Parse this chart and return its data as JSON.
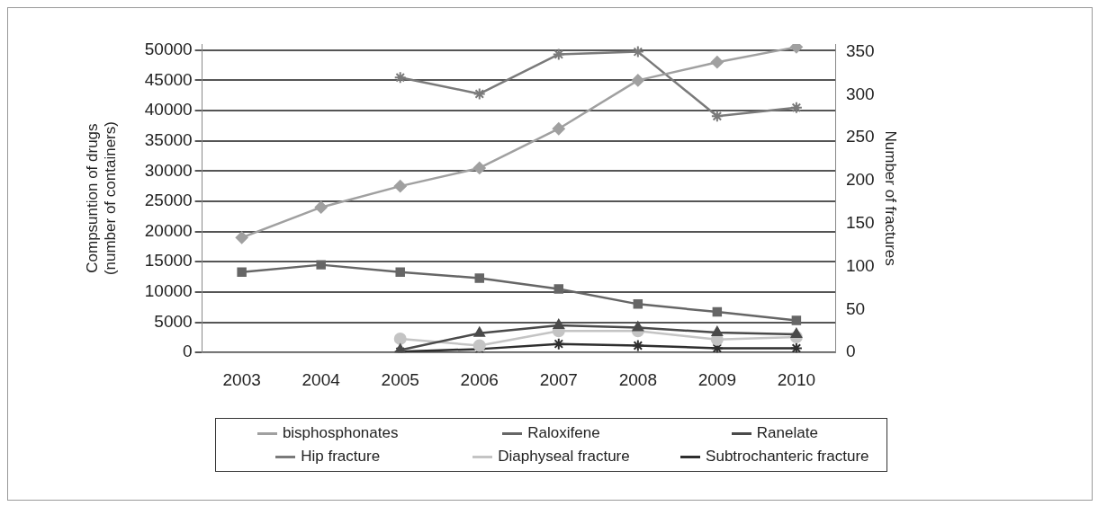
{
  "chart_data": {
    "type": "line",
    "ylabel": "Compsuntion of drugs\n(number of containers)",
    "y2label": "Number of fractures",
    "categories": [
      "2003",
      "2004",
      "2005",
      "2006",
      "2007",
      "2008",
      "2009",
      "2010"
    ],
    "series": [
      {
        "name": "bisphosphonates",
        "color": "#a0a0a0",
        "marker": "diamond",
        "values": [
          19000,
          24000,
          27500,
          30500,
          37000,
          45000,
          48000,
          50500
        ]
      },
      {
        "name": "Raloxifene",
        "color": "#666666",
        "marker": "square",
        "values": [
          13300,
          14500,
          13300,
          12300,
          10500,
          8000,
          6700,
          5300
        ]
      },
      {
        "name": "Ranelate",
        "color": "#4a4a4a",
        "marker": "triangle",
        "values": [
          null,
          null,
          400,
          3200,
          4500,
          4100,
          3300,
          3000
        ]
      },
      {
        "name": "Hip fracture",
        "color": "#7a7a7a",
        "marker": "cross",
        "axis": "y2",
        "values": [
          null,
          null,
          320,
          301,
          347,
          350,
          275,
          285
        ]
      },
      {
        "name": "Diaphyseal fracture",
        "color": "#c4c4c4",
        "marker": "circle",
        "axis": "y2",
        "values": [
          null,
          null,
          16,
          8,
          25,
          25,
          15,
          18
        ]
      },
      {
        "name": "Subtrochanteric fracture",
        "color": "#2e2e2e",
        "marker": "cross",
        "axis": "y2",
        "values": [
          null,
          null,
          1,
          4,
          10,
          8,
          5,
          5
        ]
      }
    ],
    "ylim": [
      0,
      51000
    ],
    "yticks": [
      0,
      5000,
      10000,
      15000,
      20000,
      25000,
      30000,
      35000,
      40000,
      45000,
      50000
    ],
    "y2lim": [
      0,
      359
    ],
    "y2ticks": [
      0,
      50,
      100,
      150,
      200,
      250,
      300,
      350
    ],
    "grid": "y",
    "legend": "bottom"
  }
}
